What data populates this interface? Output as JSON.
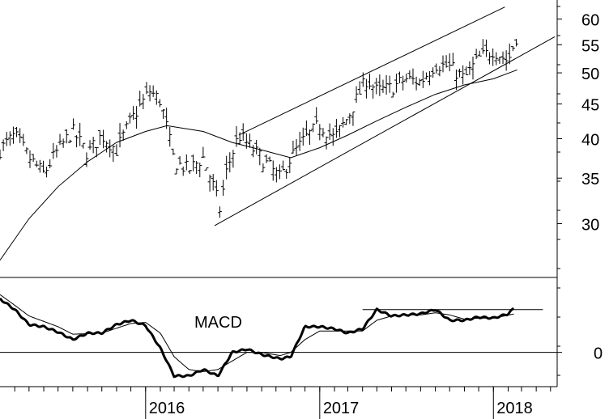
{
  "chart_data": [
    {
      "type": "bar",
      "subtype": "ohlc-weekly",
      "scale": "log",
      "ylim": [
        25,
        64
      ],
      "y_ticks": [
        30,
        35,
        40,
        45,
        50,
        55,
        60
      ],
      "x_ticks": [
        "2016",
        "2017",
        "2018"
      ],
      "x_tick_dates": [
        "2016-01-01",
        "2017-01-01",
        "2018-01-01"
      ],
      "xlim": [
        "2015-03-01",
        "2018-05-15"
      ],
      "price_anchors": [
        [
          "2015-03-01",
          38.5
        ],
        [
          "2015-04-01",
          40.5
        ],
        [
          "2015-05-01",
          37.5
        ],
        [
          "2015-06-01",
          35.5
        ],
        [
          "2015-07-01",
          38.5
        ],
        [
          "2015-08-01",
          41.0
        ],
        [
          "2015-09-01",
          38.0
        ],
        [
          "2015-10-01",
          40.5
        ],
        [
          "2015-11-01",
          38.5
        ],
        [
          "2015-12-01",
          42.5
        ],
        [
          "2016-01-10",
          47.0
        ],
        [
          "2016-02-01",
          45.5
        ],
        [
          "2016-03-01",
          37.0
        ],
        [
          "2016-04-01",
          36.0
        ],
        [
          "2016-05-01",
          37.5
        ],
        [
          "2016-05-20",
          34.5
        ],
        [
          "2016-06-05",
          31.5
        ],
        [
          "2016-06-20",
          36.0
        ],
        [
          "2016-07-15",
          40.5
        ],
        [
          "2016-08-15",
          38.5
        ],
        [
          "2016-09-15",
          36.5
        ],
        [
          "2016-10-10",
          35.0
        ],
        [
          "2016-11-01",
          37.5
        ],
        [
          "2016-12-01",
          40.0
        ],
        [
          "2017-01-01",
          42.0
        ],
        [
          "2017-02-01",
          40.0
        ],
        [
          "2017-03-01",
          43.0
        ],
        [
          "2017-04-10",
          49.0
        ],
        [
          "2017-05-01",
          47.0
        ],
        [
          "2017-06-01",
          47.5
        ],
        [
          "2017-07-01",
          49.0
        ],
        [
          "2017-08-01",
          48.5
        ],
        [
          "2017-09-01",
          51.5
        ],
        [
          "2017-10-01",
          51.0
        ],
        [
          "2017-11-01",
          49.0
        ],
        [
          "2017-12-01",
          52.5
        ],
        [
          "2018-01-01",
          54.0
        ],
        [
          "2018-02-01",
          52.0
        ],
        [
          "2018-02-20",
          57.0
        ]
      ],
      "moving_average_anchors": [
        [
          "2015-03-01",
          26.5
        ],
        [
          "2015-05-01",
          30.5
        ],
        [
          "2015-07-01",
          34.0
        ],
        [
          "2015-09-01",
          37.0
        ],
        [
          "2015-11-01",
          39.5
        ],
        [
          "2016-01-01",
          41.0
        ],
        [
          "2016-02-15",
          41.8
        ],
        [
          "2016-05-01",
          41.0
        ],
        [
          "2016-07-01",
          39.5
        ],
        [
          "2016-09-01",
          38.5
        ],
        [
          "2016-11-01",
          37.5
        ],
        [
          "2017-01-01",
          38.8
        ],
        [
          "2017-03-01",
          40.5
        ],
        [
          "2017-05-01",
          42.5
        ],
        [
          "2017-07-01",
          44.5
        ],
        [
          "2017-09-01",
          46.5
        ],
        [
          "2017-11-01",
          48.0
        ],
        [
          "2018-01-01",
          49.0
        ],
        [
          "2018-02-20",
          50.5
        ]
      ],
      "trendlines": [
        {
          "from": [
            "2016-07-15",
            40.5
          ],
          "to": [
            "2018-01-25",
            62.5
          ]
        },
        {
          "from": [
            "2016-05-25",
            29.8
          ],
          "to": [
            "2018-05-10",
            56.5
          ]
        }
      ]
    },
    {
      "type": "line",
      "subtype": "macd",
      "label": "MACD",
      "y_ticks": [
        0
      ],
      "ylim": [
        -1.6,
        3.5
      ],
      "series": [
        {
          "role": "macd",
          "values": [
            [
              "2015-03-01",
              2.5
            ],
            [
              "2015-04-01",
              2.0
            ],
            [
              "2015-05-01",
              1.3
            ],
            [
              "2015-06-01",
              1.2
            ],
            [
              "2015-07-01",
              0.95
            ],
            [
              "2015-08-01",
              0.6
            ],
            [
              "2015-09-01",
              0.9
            ],
            [
              "2015-10-01",
              0.9
            ],
            [
              "2015-11-01",
              1.3
            ],
            [
              "2015-12-01",
              1.5
            ],
            [
              "2016-01-01",
              1.25
            ],
            [
              "2016-02-01",
              0.2
            ],
            [
              "2016-03-01",
              -1.1
            ],
            [
              "2016-04-01",
              -1.1
            ],
            [
              "2016-05-01",
              -0.8
            ],
            [
              "2016-06-01",
              -1.1
            ],
            [
              "2016-07-01",
              0.0
            ],
            [
              "2016-08-01",
              0.15
            ],
            [
              "2016-09-01",
              -0.1
            ],
            [
              "2016-10-10",
              -0.3
            ],
            [
              "2016-11-01",
              -0.2
            ],
            [
              "2016-12-01",
              1.2
            ],
            [
              "2017-01-01",
              1.2
            ],
            [
              "2017-02-01",
              1.1
            ],
            [
              "2017-03-01",
              0.9
            ],
            [
              "2017-04-01",
              1.1
            ],
            [
              "2017-05-01",
              2.0
            ],
            [
              "2017-06-01",
              1.7
            ],
            [
              "2017-07-01",
              1.75
            ],
            [
              "2017-08-01",
              1.8
            ],
            [
              "2017-09-01",
              2.0
            ],
            [
              "2017-10-01",
              1.5
            ],
            [
              "2017-11-01",
              1.5
            ],
            [
              "2017-12-01",
              1.65
            ],
            [
              "2018-01-01",
              1.6
            ],
            [
              "2018-02-01",
              1.8
            ],
            [
              "2018-02-15",
              2.1
            ]
          ]
        },
        {
          "role": "signal",
          "values": [
            [
              "2015-03-01",
              2.7
            ],
            [
              "2015-04-01",
              2.2
            ],
            [
              "2015-05-01",
              1.7
            ],
            [
              "2015-07-01",
              1.2
            ],
            [
              "2015-08-01",
              0.85
            ],
            [
              "2015-10-01",
              0.9
            ],
            [
              "2015-12-01",
              1.35
            ],
            [
              "2016-01-01",
              1.4
            ],
            [
              "2016-02-01",
              0.9
            ],
            [
              "2016-03-01",
              -0.2
            ],
            [
              "2016-04-01",
              -0.8
            ],
            [
              "2016-05-01",
              -0.9
            ],
            [
              "2016-06-01",
              -0.8
            ],
            [
              "2016-07-01",
              -0.4
            ],
            [
              "2016-08-01",
              0.0
            ],
            [
              "2016-09-01",
              0.0
            ],
            [
              "2016-10-10",
              -0.15
            ],
            [
              "2016-11-01",
              0.0
            ],
            [
              "2016-12-01",
              0.6
            ],
            [
              "2017-01-01",
              1.0
            ],
            [
              "2017-02-01",
              1.0
            ],
            [
              "2017-03-01",
              1.0
            ],
            [
              "2017-04-01",
              1.0
            ],
            [
              "2017-05-01",
              1.5
            ],
            [
              "2017-06-01",
              1.7
            ],
            [
              "2017-07-01",
              1.75
            ],
            [
              "2017-08-01",
              1.75
            ],
            [
              "2017-09-01",
              1.85
            ],
            [
              "2017-10-01",
              1.75
            ],
            [
              "2017-11-01",
              1.55
            ],
            [
              "2017-12-01",
              1.6
            ],
            [
              "2018-01-01",
              1.6
            ],
            [
              "2018-02-15",
              1.8
            ]
          ]
        }
      ],
      "reference_lines": [
        {
          "from": [
            "2017-04-01",
            2.0
          ],
          "to": [
            "2018-04-15",
            2.0
          ]
        }
      ]
    }
  ]
}
